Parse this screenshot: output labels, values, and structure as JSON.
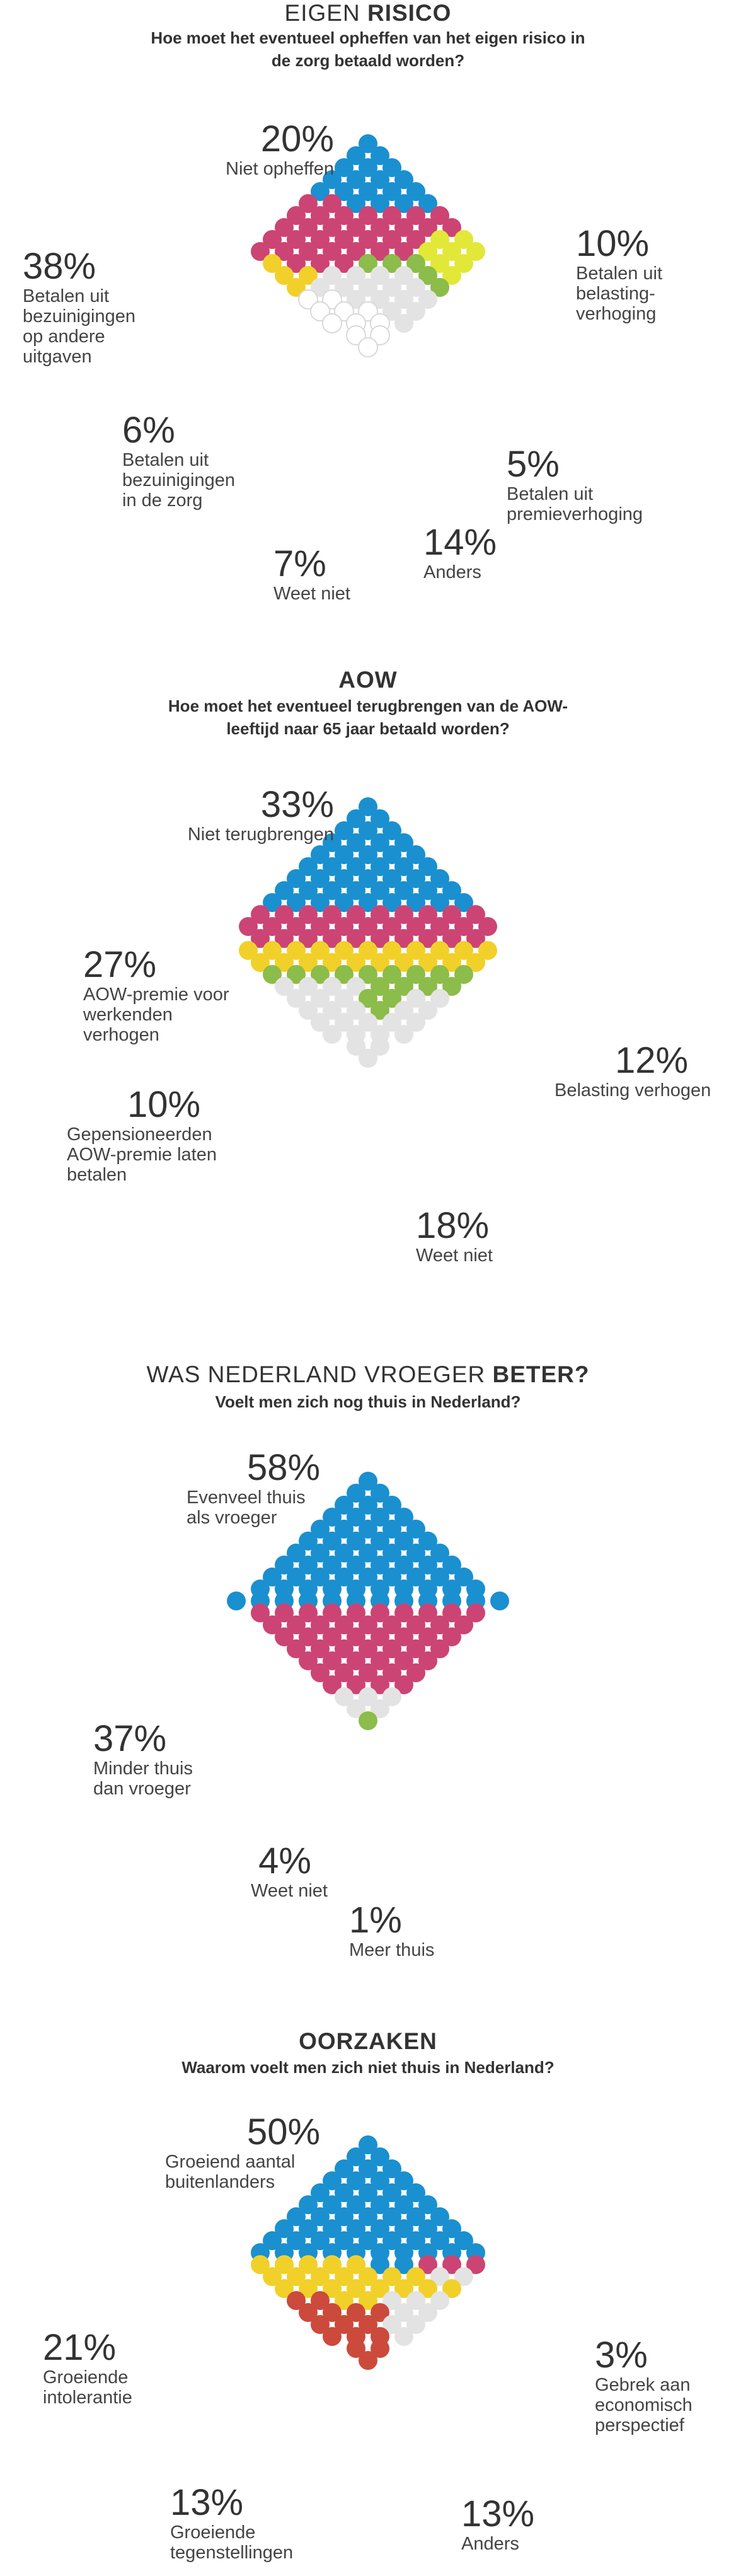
{
  "colors": {
    "blue": "#1a90d0",
    "red": "#cc4474",
    "yellow": "#f2d02a",
    "lime": "#e2e838",
    "green": "#8cbc4a",
    "grey": "#e3e3e3",
    "white": "#ffffff",
    "outline": "#d9d9d9",
    "brick": "#cc4a3c"
  },
  "chart_data": [
    {
      "type": "waffle-diamond",
      "title_light": "EIGEN",
      "title_bold": "RISICO",
      "subtitle": "Hoe moet het eventueel opheffen van het eigen risico in de zorg betaald worden?",
      "series": [
        {
          "name": "Niet opheffen",
          "value": 20,
          "pct_label": "20%",
          "color": "blue"
        },
        {
          "name": "Betalen uit bezuinigingen op andere uitgaven",
          "value": 38,
          "pct_label": "38%",
          "color": "red"
        },
        {
          "name": "Betalen uit belasting-verhoging",
          "value": 10,
          "pct_label": "10%",
          "color": "lime"
        },
        {
          "name": "Betalen uit bezuinigingen in de zorg",
          "value": 6,
          "pct_label": "6%",
          "color": "yellow"
        },
        {
          "name": "Betalen uit premieverhoging",
          "value": 5,
          "pct_label": "5%",
          "color": "green"
        },
        {
          "name": "Anders",
          "value": 14,
          "pct_label": "14%",
          "color": "grey"
        },
        {
          "name": "Weet niet",
          "value": 7,
          "pct_label": "7%",
          "color": "white"
        }
      ]
    },
    {
      "type": "waffle-diamond",
      "title_light": "",
      "title_bold": "AOW",
      "subtitle": "Hoe moet het eventueel terugbrengen van de AOW-leeftijd naar 65 jaar betaald worden?",
      "series": [
        {
          "name": "Niet terugbrengen",
          "value": 33,
          "pct_label": "33%",
          "color": "blue"
        },
        {
          "name": "AOW-premie voor werkenden verhogen",
          "value": 27,
          "pct_label": "27%",
          "color": "red"
        },
        {
          "name": "Belasting verhogen",
          "value": 12,
          "pct_label": "12%",
          "color": "yellow"
        },
        {
          "name": "Gepensioneerden AOW-premie laten betalen",
          "value": 10,
          "pct_label": "10%",
          "color": "green"
        },
        {
          "name": "Weet niet",
          "value": 18,
          "pct_label": "18%",
          "color": "grey"
        }
      ]
    },
    {
      "type": "waffle-diamond",
      "title_light": "WAS NEDERLAND VROEGER",
      "title_bold": "BETER?",
      "subtitle": "Voelt men zich nog thuis in Nederland?",
      "series": [
        {
          "name": "Evenveel thuis als vroeger",
          "value": 58,
          "pct_label": "58%",
          "color": "blue"
        },
        {
          "name": "Minder thuis dan vroeger",
          "value": 37,
          "pct_label": "37%",
          "color": "red"
        },
        {
          "name": "Weet niet",
          "value": 4,
          "pct_label": "4%",
          "color": "grey"
        },
        {
          "name": "Meer thuis",
          "value": 1,
          "pct_label": "1%",
          "color": "green"
        }
      ]
    },
    {
      "type": "waffle-diamond",
      "title_light": "",
      "title_bold": "OORZAKEN",
      "subtitle": "Waarom voelt men zich niet thuis in Nederland?",
      "series": [
        {
          "name": "Groeiend aantal buitenlanders",
          "value": 50,
          "pct_label": "50%",
          "color": "blue"
        },
        {
          "name": "Groeiende intolerantie",
          "value": 21,
          "pct_label": "21%",
          "color": "yellow"
        },
        {
          "name": "Gebrek aan economisch perspectief",
          "value": 3,
          "pct_label": "3%",
          "color": "red"
        },
        {
          "name": "Groeiende tegenstellingen",
          "value": 13,
          "pct_label": "13%",
          "color": "brick"
        },
        {
          "name": "Anders",
          "value": 13,
          "pct_label": "13%",
          "color": "grey"
        }
      ]
    }
  ],
  "labels": {
    "c1": {
      "p_blue": "20%",
      "t_blue": "Niet opheffen",
      "p_red": "38%",
      "t_red": "Betalen uit\nbezuinigingen\nop andere\nuitgaven",
      "p_lime": "10%",
      "t_lime": "Betalen uit\nbelasting-\nverhoging",
      "p_yellow": "6%",
      "t_yellow": "Betalen uit\nbezuinigingen\nin de zorg",
      "p_green": "5%",
      "t_green": "Betalen uit\npremieverhoging",
      "p_grey": "14%",
      "t_grey": "Anders",
      "p_white": "7%",
      "t_white": "Weet niet"
    },
    "c2": {
      "p_blue": "33%",
      "t_blue": "Niet terugbrengen",
      "p_red": "27%",
      "t_red": "AOW-premie voor\nwerkenden\nverhogen",
      "p_yellow": "12%",
      "t_yellow": "Belasting verhogen",
      "p_green": "10%",
      "t_green": "Gepensioneerden\nAOW-premie laten\nbetalen",
      "p_grey": "18%",
      "t_grey": "Weet niet"
    },
    "c3": {
      "p_blue": "58%",
      "t_blue": "Evenveel thuis\nals vroeger",
      "p_red": "37%",
      "t_red": "Minder thuis\ndan vroeger",
      "p_grey": "4%",
      "t_grey": "Weet niet",
      "p_green": "1%",
      "t_green": "Meer thuis"
    },
    "c4": {
      "p_blue": "50%",
      "t_blue": "Groeiend aantal\nbuitenlanders",
      "p_yellow": "21%",
      "t_yellow": "Groeiende\nintolerantie",
      "p_red": "3%",
      "t_red": "Gebrek aan\neconomisch\nperspectief",
      "p_brick": "13%",
      "t_brick": "Groeiende\ntegenstellingen",
      "p_grey": "13%",
      "t_grey": "Anders"
    }
  }
}
